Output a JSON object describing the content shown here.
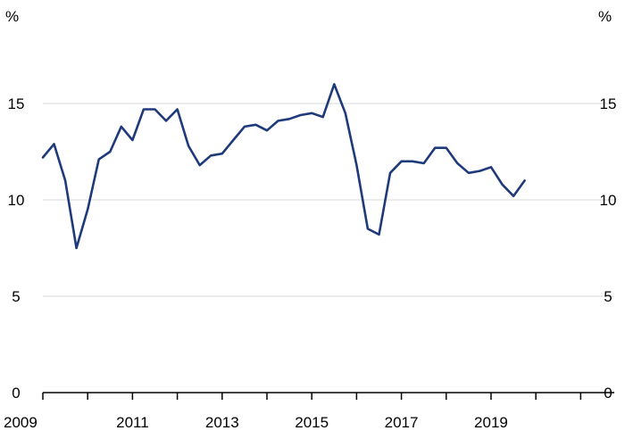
{
  "chart_data": {
    "type": "line",
    "title": "",
    "xlabel": "",
    "ylabel": "",
    "y_unit_left": "%",
    "y_unit_right": "%",
    "xlim": [
      2009.0,
      2021.75
    ],
    "ylim": [
      0,
      20
    ],
    "x_ticks": [
      2009,
      2011,
      2013,
      2015,
      2017,
      2019
    ],
    "x_tick_labels": [
      "2009",
      "2011",
      "2013",
      "2015",
      "2017",
      "2019"
    ],
    "x_minor_ticks": [
      2010,
      2012,
      2014,
      2016,
      2018,
      2020,
      2021
    ],
    "y_ticks": [
      0,
      5,
      10,
      15
    ],
    "y_tick_labels": [
      "0",
      "5",
      "10",
      "15"
    ],
    "grid": "horizontal",
    "line_color": "#1f3a7a",
    "grid_color": "#d9d9d9",
    "axis_color": "#000000",
    "series": [
      {
        "x": [
          2009.0,
          2009.25,
          2009.5,
          2009.75,
          2010.0,
          2010.25,
          2010.5,
          2010.75,
          2011.0,
          2011.25,
          2011.5,
          2011.75,
          2012.0,
          2012.25,
          2012.5,
          2012.75,
          2013.0,
          2013.25,
          2013.5,
          2013.75,
          2014.0,
          2014.25,
          2014.5,
          2014.75,
          2015.0,
          2015.25,
          2015.5,
          2015.75,
          2016.0,
          2016.25,
          2016.5,
          2016.75,
          2017.0,
          2017.25,
          2017.5,
          2017.75,
          2018.0,
          2018.25,
          2018.5,
          2018.75,
          2019.0,
          2019.25,
          2019.5,
          2019.75
        ],
        "values": [
          12.2,
          12.9,
          11.0,
          7.5,
          9.5,
          12.1,
          12.5,
          13.8,
          13.1,
          14.7,
          14.7,
          14.1,
          14.7,
          12.8,
          11.8,
          12.3,
          12.4,
          13.1,
          13.8,
          13.9,
          13.6,
          14.1,
          14.2,
          14.4,
          14.5,
          14.3,
          16.0,
          14.5,
          11.8,
          8.5,
          8.2,
          11.4,
          12.0,
          12.0,
          11.9,
          12.7,
          12.7,
          11.9,
          11.4,
          11.5,
          11.7,
          10.8,
          10.2,
          11.0
        ]
      }
    ]
  }
}
